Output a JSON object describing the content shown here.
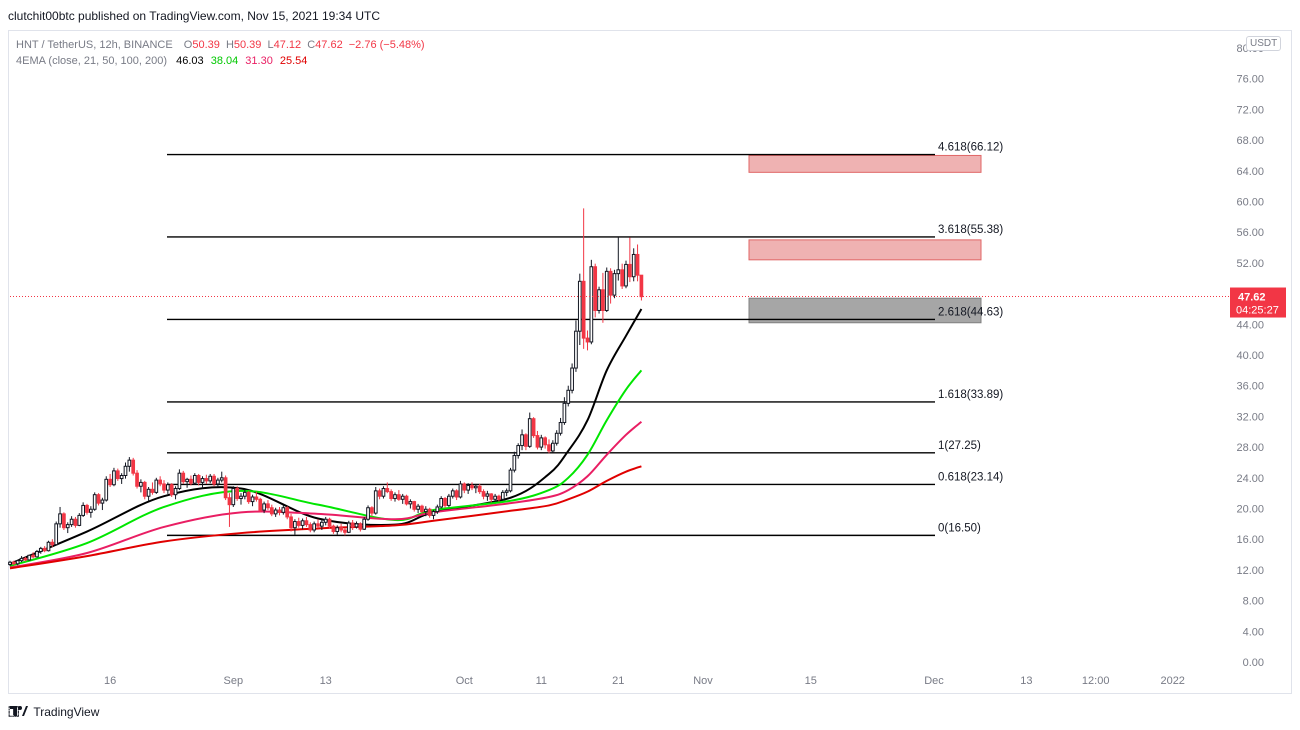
{
  "publish_bar": {
    "text": "clutchit00btc published on TradingView.com, Nov 15, 2021 19:34 UTC"
  },
  "legend": {
    "symbol": "HNT / TetherUS, 12h, BINANCE",
    "o_label": "O",
    "o_value": "50.39",
    "h_label": "H",
    "h_value": "50.39",
    "l_label": "L",
    "l_value": "47.12",
    "c_label": "C",
    "c_value": "47.62",
    "change": "−2.76 (−5.48%)",
    "ema_label": "4EMA (close, 21, 50, 100, 200)",
    "ema_values": [
      "46.03",
      "38.04",
      "31.30",
      "25.54"
    ],
    "ema_colors": [
      "#000000",
      "#00e600",
      "#e91e63",
      "#e00000"
    ]
  },
  "currency_badge": "USDT",
  "price_label": {
    "price": "47.62",
    "countdown": "04:25:27",
    "color": "#f23645"
  },
  "footer": {
    "brand": "TradingView"
  },
  "chart_data": {
    "type": "candlestick",
    "y_axis": {
      "min": 0,
      "max": 80,
      "ticks": [
        "0.00",
        "4.00",
        "8.00",
        "12.00",
        "16.00",
        "20.00",
        "24.00",
        "28.00",
        "32.00",
        "36.00",
        "40.00",
        "44.00",
        "48.00",
        "52.00",
        "56.00",
        "60.00",
        "64.00",
        "68.00",
        "72.00",
        "76.00",
        "80.00"
      ]
    },
    "x_axis": {
      "ticks": [
        {
          "label": "16",
          "x": "2021-08-16"
        },
        {
          "label": "Sep",
          "x": "2021-09-01"
        },
        {
          "label": "13",
          "x": "2021-09-13"
        },
        {
          "label": "Oct",
          "x": "2021-10-01"
        },
        {
          "label": "11",
          "x": "2021-10-11"
        },
        {
          "label": "21",
          "x": "2021-10-21"
        },
        {
          "label": "Nov",
          "x": "2021-11-01"
        },
        {
          "label": "15",
          "x": "2021-11-15"
        },
        {
          "label": "Dec",
          "x": "2021-12-01"
        },
        {
          "label": "13",
          "x": "2021-12-13"
        },
        {
          "label": "12:00",
          "x": "2021-12-22"
        },
        {
          "label": "2022",
          "x": "2022-01-01"
        }
      ]
    },
    "start_date": "2021-08-03",
    "interval_days": 0.5,
    "candles": [
      [
        12.7,
        13.2,
        12.5,
        13.0
      ],
      [
        13.0,
        13.2,
        12.6,
        12.8
      ],
      [
        12.8,
        13.3,
        12.6,
        13.2
      ],
      [
        13.2,
        13.8,
        13.0,
        13.5
      ],
      [
        13.5,
        13.7,
        13.1,
        13.3
      ],
      [
        13.3,
        14.0,
        13.2,
        13.9
      ],
      [
        13.9,
        14.3,
        13.5,
        13.7
      ],
      [
        13.7,
        14.6,
        13.6,
        14.4
      ],
      [
        14.4,
        15.0,
        14.1,
        14.8
      ],
      [
        14.8,
        15.1,
        14.3,
        14.5
      ],
      [
        14.5,
        15.8,
        14.4,
        15.6
      ],
      [
        15.6,
        16.0,
        15.0,
        15.3
      ],
      [
        15.3,
        18.3,
        15.2,
        18.0
      ],
      [
        18.0,
        20.2,
        17.5,
        19.3
      ],
      [
        19.3,
        19.5,
        17.2,
        17.5
      ],
      [
        17.5,
        18.2,
        16.8,
        17.9
      ],
      [
        17.9,
        19.0,
        17.6,
        18.6
      ],
      [
        18.6,
        18.9,
        17.5,
        17.8
      ],
      [
        17.8,
        19.4,
        17.7,
        19.1
      ],
      [
        19.1,
        20.8,
        18.9,
        20.4
      ],
      [
        20.4,
        20.6,
        19.2,
        19.5
      ],
      [
        19.5,
        20.3,
        18.8,
        19.9
      ],
      [
        19.9,
        22.1,
        19.7,
        21.8
      ],
      [
        21.8,
        22.0,
        20.4,
        20.7
      ],
      [
        20.7,
        21.4,
        19.8,
        21.1
      ],
      [
        21.1,
        24.2,
        20.9,
        23.8
      ],
      [
        23.8,
        24.5,
        22.8,
        23.1
      ],
      [
        23.1,
        25.3,
        22.9,
        24.9
      ],
      [
        24.9,
        25.2,
        23.6,
        23.9
      ],
      [
        23.9,
        24.6,
        23.2,
        24.3
      ],
      [
        24.3,
        26.0,
        23.9,
        25.5
      ],
      [
        25.5,
        26.7,
        24.8,
        26.3
      ],
      [
        26.3,
        26.6,
        24.3,
        24.6
      ],
      [
        24.6,
        25.0,
        22.6,
        22.9
      ],
      [
        22.9,
        23.8,
        22.1,
        23.4
      ],
      [
        23.4,
        23.6,
        21.2,
        21.6
      ],
      [
        21.6,
        22.8,
        21.0,
        22.5
      ],
      [
        22.5,
        23.4,
        21.8,
        22.1
      ],
      [
        22.1,
        24.0,
        21.9,
        23.7
      ],
      [
        23.7,
        24.2,
        22.9,
        23.2
      ],
      [
        23.2,
        23.7,
        22.0,
        22.4
      ],
      [
        22.4,
        23.4,
        21.9,
        23.1
      ],
      [
        23.1,
        23.3,
        21.5,
        21.8
      ],
      [
        21.8,
        22.9,
        21.2,
        22.6
      ],
      [
        22.6,
        25.1,
        22.4,
        24.6
      ],
      [
        24.6,
        24.9,
        23.2,
        23.5
      ],
      [
        23.5,
        24.0,
        22.7,
        23.8
      ],
      [
        23.8,
        24.3,
        23.0,
        23.3
      ],
      [
        23.3,
        24.6,
        23.1,
        24.3
      ],
      [
        24.3,
        24.5,
        23.0,
        23.4
      ],
      [
        23.4,
        24.2,
        22.6,
        23.9
      ],
      [
        23.9,
        24.4,
        23.2,
        23.6
      ],
      [
        23.6,
        24.5,
        23.3,
        24.2
      ],
      [
        24.2,
        24.5,
        22.9,
        23.2
      ],
      [
        23.2,
        24.0,
        22.8,
        23.7
      ],
      [
        23.7,
        24.8,
        23.4,
        24.0
      ],
      [
        24.0,
        24.3,
        21.1,
        21.4
      ],
      [
        21.4,
        22.0,
        17.6,
        20.5
      ],
      [
        20.5,
        22.9,
        20.2,
        22.6
      ],
      [
        22.6,
        22.9,
        21.0,
        21.3
      ],
      [
        21.3,
        22.0,
        20.5,
        21.6
      ],
      [
        21.6,
        22.5,
        21.2,
        22.1
      ],
      [
        22.1,
        22.3,
        20.6,
        20.9
      ],
      [
        20.9,
        21.8,
        20.3,
        21.5
      ],
      [
        21.5,
        22.2,
        20.9,
        21.2
      ],
      [
        21.2,
        21.4,
        19.5,
        19.8
      ],
      [
        19.8,
        20.9,
        19.4,
        20.6
      ],
      [
        20.6,
        21.1,
        19.8,
        20.1
      ],
      [
        20.1,
        20.5,
        19.0,
        19.3
      ],
      [
        19.3,
        20.1,
        18.9,
        19.8
      ],
      [
        19.8,
        20.2,
        19.1,
        19.5
      ],
      [
        19.5,
        20.4,
        19.2,
        20.1
      ],
      [
        20.1,
        20.3,
        18.6,
        18.9
      ],
      [
        18.9,
        19.3,
        17.0,
        17.5
      ],
      [
        17.5,
        18.6,
        16.6,
        18.3
      ],
      [
        18.3,
        18.8,
        17.5,
        17.8
      ],
      [
        17.8,
        18.7,
        17.3,
        18.4
      ],
      [
        18.4,
        18.9,
        17.6,
        17.9
      ],
      [
        17.9,
        18.2,
        16.9,
        17.2
      ],
      [
        17.2,
        18.3,
        16.9,
        18.0
      ],
      [
        18.0,
        18.6,
        17.4,
        17.7
      ],
      [
        17.7,
        18.5,
        17.2,
        18.2
      ],
      [
        18.2,
        18.9,
        17.8,
        18.6
      ],
      [
        18.6,
        18.8,
        17.4,
        17.7
      ],
      [
        17.7,
        17.9,
        16.7,
        17.0
      ],
      [
        17.0,
        17.8,
        16.6,
        17.5
      ],
      [
        17.5,
        18.0,
        16.9,
        17.2
      ],
      [
        17.2,
        17.4,
        16.5,
        16.9
      ],
      [
        16.9,
        18.4,
        16.8,
        18.1
      ],
      [
        18.1,
        18.5,
        17.2,
        17.6
      ],
      [
        17.6,
        18.3,
        17.4,
        18.0
      ],
      [
        18.0,
        18.2,
        17.0,
        17.3
      ],
      [
        17.3,
        18.9,
        17.2,
        18.6
      ],
      [
        18.6,
        20.4,
        18.4,
        20.1
      ],
      [
        20.1,
        20.3,
        19.0,
        19.4
      ],
      [
        19.4,
        22.8,
        19.2,
        22.3
      ],
      [
        22.3,
        22.6,
        21.2,
        21.6
      ],
      [
        21.6,
        22.9,
        21.3,
        22.6
      ],
      [
        22.6,
        23.4,
        22.0,
        22.2
      ],
      [
        22.2,
        22.5,
        21.0,
        21.3
      ],
      [
        21.3,
        22.1,
        20.9,
        21.8
      ],
      [
        21.8,
        22.4,
        21.0,
        21.2
      ],
      [
        21.2,
        21.9,
        20.6,
        21.6
      ],
      [
        21.6,
        21.8,
        20.4,
        20.6
      ],
      [
        20.6,
        21.2,
        20.0,
        20.9
      ],
      [
        20.9,
        21.0,
        19.6,
        19.9
      ],
      [
        19.9,
        20.6,
        19.4,
        20.3
      ],
      [
        20.3,
        20.5,
        19.3,
        19.6
      ],
      [
        19.6,
        20.3,
        19.0,
        19.9
      ],
      [
        19.9,
        20.1,
        18.8,
        19.1
      ],
      [
        19.1,
        19.8,
        18.6,
        19.6
      ],
      [
        19.6,
        20.5,
        19.3,
        20.2
      ],
      [
        20.2,
        21.6,
        20.0,
        21.3
      ],
      [
        21.3,
        21.5,
        20.1,
        20.4
      ],
      [
        20.4,
        21.9,
        20.2,
        21.6
      ],
      [
        21.6,
        22.6,
        21.3,
        22.3
      ],
      [
        22.3,
        22.5,
        21.1,
        21.5
      ],
      [
        21.5,
        23.6,
        21.3,
        23.2
      ],
      [
        23.2,
        23.4,
        22.0,
        22.4
      ],
      [
        22.4,
        23.3,
        21.9,
        23.0
      ],
      [
        23.0,
        23.4,
        22.4,
        22.7
      ],
      [
        22.7,
        23.2,
        22.0,
        22.9
      ],
      [
        22.9,
        23.2,
        21.9,
        22.2
      ],
      [
        22.2,
        22.5,
        21.2,
        21.6
      ],
      [
        21.6,
        22.3,
        21.0,
        21.9
      ],
      [
        21.9,
        22.0,
        20.8,
        21.2
      ],
      [
        21.2,
        21.9,
        20.9,
        21.6
      ],
      [
        21.6,
        21.8,
        20.9,
        21.2
      ],
      [
        21.2,
        22.4,
        21.0,
        22.1
      ],
      [
        22.1,
        22.6,
        21.6,
        22.3
      ],
      [
        22.3,
        25.3,
        22.1,
        25.0
      ],
      [
        25.0,
        27.4,
        24.7,
        26.9
      ],
      [
        26.9,
        28.5,
        26.5,
        28.2
      ],
      [
        28.2,
        30.3,
        27.6,
        29.6
      ],
      [
        29.6,
        29.8,
        27.6,
        28.1
      ],
      [
        28.1,
        32.5,
        27.9,
        31.7
      ],
      [
        31.7,
        31.9,
        29.2,
        29.5
      ],
      [
        29.5,
        30.1,
        27.7,
        28.0
      ],
      [
        28.0,
        29.6,
        27.6,
        29.2
      ],
      [
        29.2,
        29.4,
        27.8,
        28.3
      ],
      [
        28.3,
        29.0,
        27.2,
        27.5
      ],
      [
        27.5,
        28.9,
        27.3,
        28.5
      ],
      [
        28.5,
        30.2,
        28.2,
        29.8
      ],
      [
        29.8,
        31.8,
        29.5,
        31.2
      ],
      [
        31.2,
        34.5,
        30.9,
        33.7
      ],
      [
        33.7,
        36.0,
        33.3,
        35.4
      ],
      [
        35.4,
        38.9,
        35.0,
        38.3
      ],
      [
        38.3,
        44.5,
        37.8,
        43.1
      ],
      [
        43.1,
        50.6,
        41.3,
        49.6
      ],
      [
        49.6,
        59.1,
        40.8,
        42.2
      ],
      [
        42.2,
        43.2,
        40.6,
        41.7
      ],
      [
        41.7,
        52.4,
        41.4,
        51.5
      ],
      [
        51.5,
        51.9,
        44.9,
        45.8
      ],
      [
        45.8,
        48.9,
        45.4,
        48.5
      ],
      [
        48.5,
        50.7,
        44.2,
        45.8
      ],
      [
        45.8,
        51.4,
        45.6,
        50.9
      ],
      [
        50.9,
        51.3,
        46.7,
        47.8
      ],
      [
        47.8,
        51.1,
        47.4,
        50.6
      ],
      [
        50.6,
        55.3,
        49.7,
        51.1
      ],
      [
        51.1,
        51.9,
        48.6,
        49.0
      ],
      [
        49.0,
        52.3,
        48.7,
        51.8
      ],
      [
        51.8,
        55.3,
        49.5,
        50.2
      ],
      [
        50.2,
        53.9,
        49.6,
        53.1
      ],
      [
        53.1,
        54.4,
        49.6,
        50.4
      ],
      [
        50.4,
        50.4,
        47.1,
        47.6
      ]
    ],
    "ema_series": [
      {
        "name": "EMA 21",
        "color": "#000000",
        "anchors": [
          [
            0,
            12.8
          ],
          [
            20,
            17.0
          ],
          [
            40,
            21.6
          ],
          [
            60,
            22.6
          ],
          [
            80,
            18.7
          ],
          [
            100,
            17.9
          ],
          [
            110,
            19.5
          ],
          [
            130,
            21.4
          ],
          [
            140,
            24.5
          ],
          [
            145,
            27.5
          ],
          [
            150,
            31.5
          ],
          [
            155,
            38.0
          ],
          [
            160,
            42.5
          ],
          [
            164,
            46.0
          ]
        ]
      },
      {
        "name": "EMA 50",
        "color": "#00e600",
        "anchors": [
          [
            0,
            12.5
          ],
          [
            20,
            15.5
          ],
          [
            40,
            20.2
          ],
          [
            60,
            22.3
          ],
          [
            80,
            20.5
          ],
          [
            100,
            18.5
          ],
          [
            110,
            19.8
          ],
          [
            130,
            21.0
          ],
          [
            140,
            22.4
          ],
          [
            145,
            24.0
          ],
          [
            150,
            27.0
          ],
          [
            155,
            31.5
          ],
          [
            160,
            35.5
          ],
          [
            164,
            38.0
          ]
        ]
      },
      {
        "name": "EMA 100",
        "color": "#e91e63",
        "anchors": [
          [
            0,
            12.3
          ],
          [
            20,
            14.2
          ],
          [
            40,
            17.6
          ],
          [
            60,
            19.5
          ],
          [
            80,
            19.3
          ],
          [
            100,
            18.6
          ],
          [
            110,
            19.5
          ],
          [
            130,
            20.7
          ],
          [
            140,
            21.5
          ],
          [
            145,
            22.4
          ],
          [
            150,
            24.2
          ],
          [
            155,
            27.0
          ],
          [
            160,
            29.6
          ],
          [
            164,
            31.3
          ]
        ]
      },
      {
        "name": "EMA 200",
        "color": "#e00000",
        "anchors": [
          [
            0,
            12.2
          ],
          [
            20,
            13.8
          ],
          [
            40,
            15.7
          ],
          [
            60,
            16.8
          ],
          [
            80,
            17.4
          ],
          [
            100,
            17.8
          ],
          [
            110,
            18.4
          ],
          [
            130,
            19.7
          ],
          [
            140,
            20.4
          ],
          [
            145,
            21.2
          ],
          [
            150,
            22.2
          ],
          [
            155,
            23.6
          ],
          [
            160,
            24.8
          ],
          [
            164,
            25.5
          ]
        ]
      }
    ],
    "fib_levels": [
      {
        "label": "4.618(66.12)",
        "value": 66.12
      },
      {
        "label": "3.618(55.38)",
        "value": 55.38
      },
      {
        "label": "2.618(44.63)",
        "value": 44.63
      },
      {
        "label": "1.618(33.89)",
        "value": 33.89
      },
      {
        "label": "1(27.25)",
        "value": 27.25
      },
      {
        "label": "0.618(23.14)",
        "value": 23.14
      },
      {
        "label": "0(16.50)",
        "value": 16.5
      }
    ],
    "zones": [
      {
        "top": 66.0,
        "bottom": 63.8,
        "color": "#e06666"
      },
      {
        "top": 55.0,
        "bottom": 52.4,
        "color": "#e06666"
      },
      {
        "top": 47.4,
        "bottom": 44.2,
        "color": "#808080"
      }
    ],
    "last_price": 47.62
  }
}
